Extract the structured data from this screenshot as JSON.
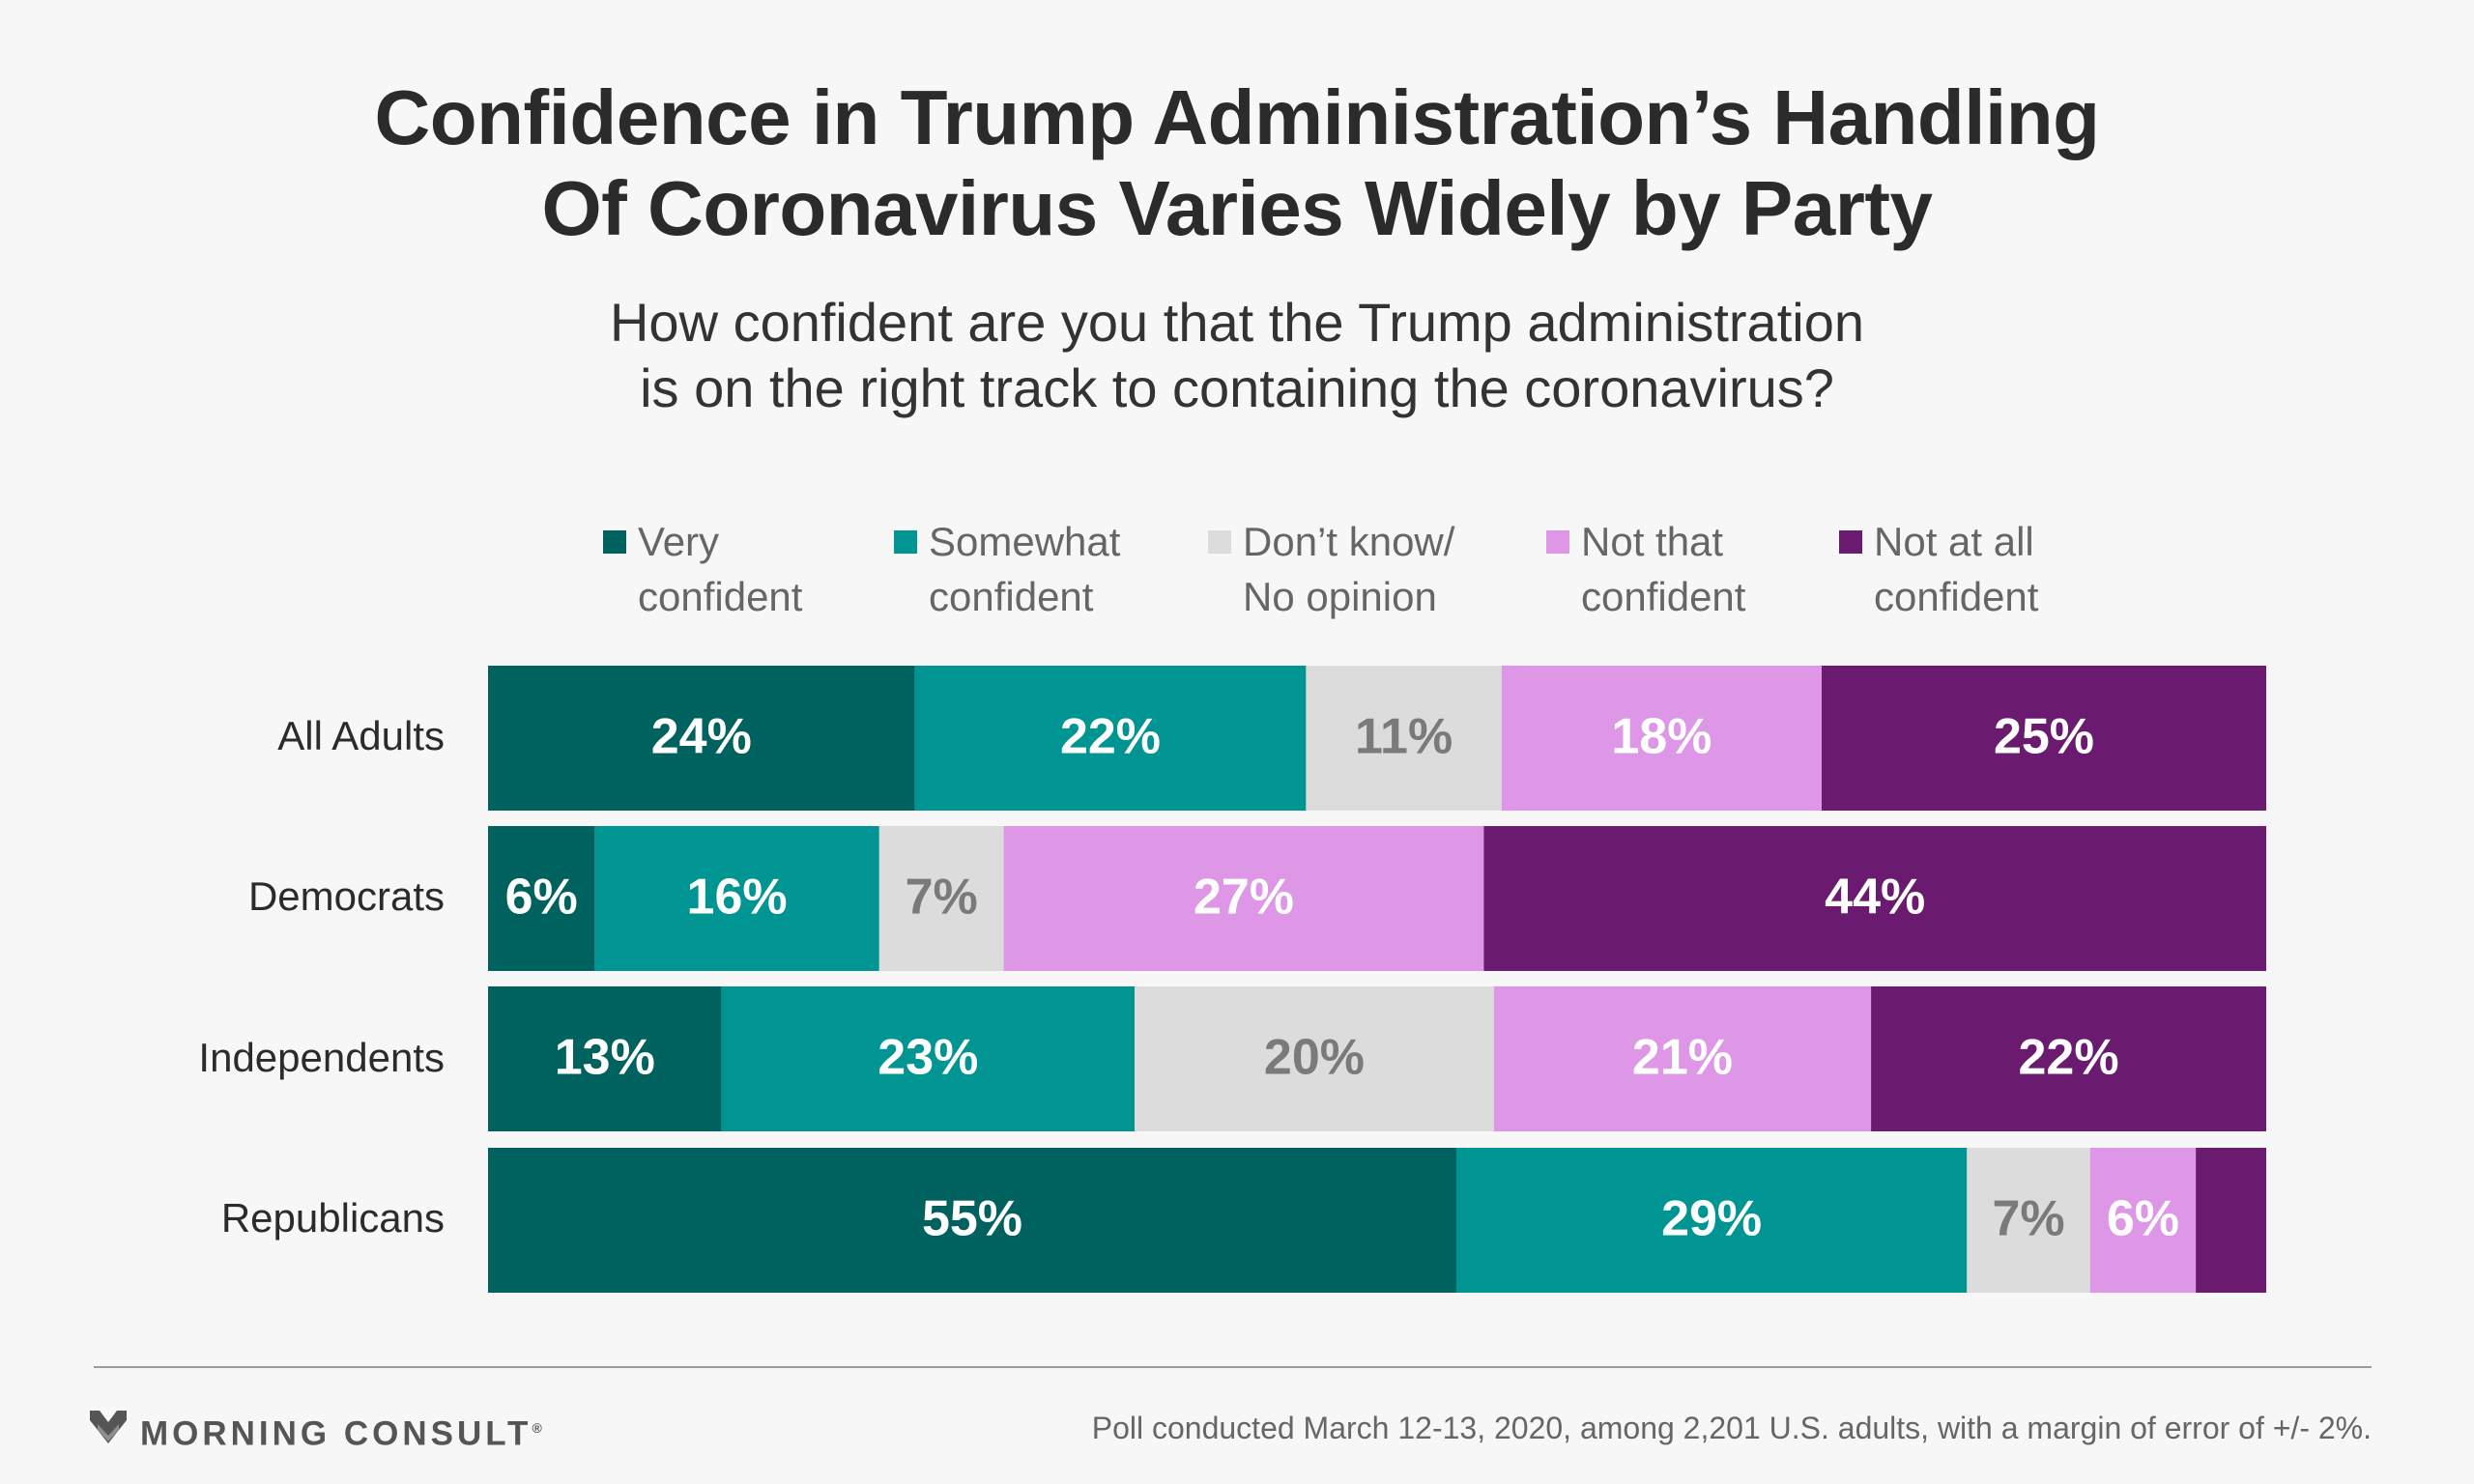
{
  "title_lines": [
    "Confidence in Trump Administration’s Handling",
    "Of Coronavirus Varies Widely by Party"
  ],
  "subtitle_lines": [
    "How confident are you that the Trump administration",
    "is on the right track to containing the coronavirus?"
  ],
  "legend": [
    {
      "lines": [
        "Very",
        "confident"
      ],
      "color": "#00625f"
    },
    {
      "lines": [
        "Somewhat",
        "confident"
      ],
      "color": "#009493"
    },
    {
      "lines": [
        "Don’t know/",
        "No opinion"
      ],
      "color": "#dcdcdc"
    },
    {
      "lines": [
        "Not that",
        "confident"
      ],
      "color": "#dd97e6"
    },
    {
      "lines": [
        "Not at all",
        "confident"
      ],
      "color": "#6a1b70"
    }
  ],
  "chart_data": {
    "type": "bar",
    "orientation": "horizontal",
    "stacked": true,
    "categories": [
      "All Adults",
      "Democrats",
      "Independents",
      "Republicans"
    ],
    "series": [
      {
        "name": "Very confident",
        "values": [
          24,
          6,
          13,
          55
        ],
        "labels": [
          "24%",
          "6%",
          "13%",
          "55%"
        ],
        "color": "#00625f",
        "label_color": "#ffffff"
      },
      {
        "name": "Somewhat confident",
        "values": [
          22,
          16,
          23,
          29
        ],
        "labels": [
          "22%",
          "16%",
          "23%",
          "29%"
        ],
        "color": "#009493",
        "label_color": "#ffffff"
      },
      {
        "name": "Don’t know/ No opinion",
        "values": [
          11,
          7,
          20,
          7
        ],
        "labels": [
          "11%",
          "7%",
          "20%",
          "7%"
        ],
        "color": "#dcdcdc",
        "label_color": "#7a7a7a"
      },
      {
        "name": "Not that confident",
        "values": [
          18,
          27,
          21,
          6
        ],
        "labels": [
          "18%",
          "27%",
          "21%",
          "6%"
        ],
        "color": "#dd97e6",
        "label_color": "#ffffff"
      },
      {
        "name": "Not at all confident",
        "values": [
          25,
          44,
          22,
          4
        ],
        "labels": [
          "25%",
          "44%",
          "22%",
          ""
        ],
        "color": "#6a1b70",
        "label_color": "#ffffff"
      }
    ],
    "xlim": [
      0,
      100
    ],
    "grid": false,
    "legend_position": "top"
  },
  "footer": {
    "logo_text": "MORNING CONSULT",
    "logo_mark": "®",
    "note": "Poll conducted March 12-13, 2020, among 2,201 U.S. adults, with a margin of error of +/- 2%."
  }
}
